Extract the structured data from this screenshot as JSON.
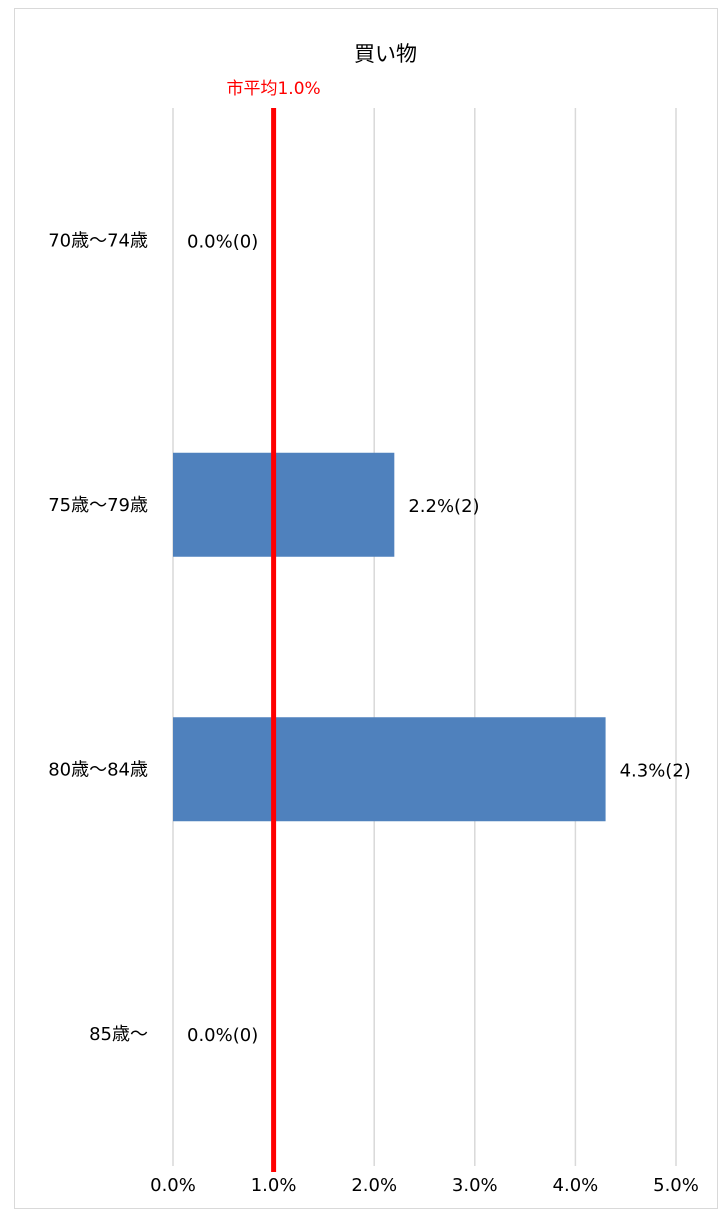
{
  "chart_data": {
    "type": "bar",
    "orientation": "horizontal",
    "title": "買い物",
    "categories": [
      "70歳～74歳",
      "75歳～79歳",
      "80歳～84歳",
      "85歳～"
    ],
    "values": [
      0.0,
      2.2,
      4.3,
      0.0
    ],
    "counts": [
      0,
      2,
      2,
      0
    ],
    "data_labels": [
      "0.0%(0)",
      "2.2%(2)",
      "4.3%(2)",
      "0.0%(0)"
    ],
    "xlim": [
      0,
      5
    ],
    "x_ticks": [
      "0.0%",
      "1.0%",
      "2.0%",
      "3.0%",
      "4.0%",
      "5.0%"
    ],
    "grid": true,
    "reference_line": {
      "value": 1.0,
      "label": "市平均1.0%",
      "color": "#ff0000"
    },
    "bar_color": "#4f81bd",
    "grid_color": "#d9d9d9"
  }
}
